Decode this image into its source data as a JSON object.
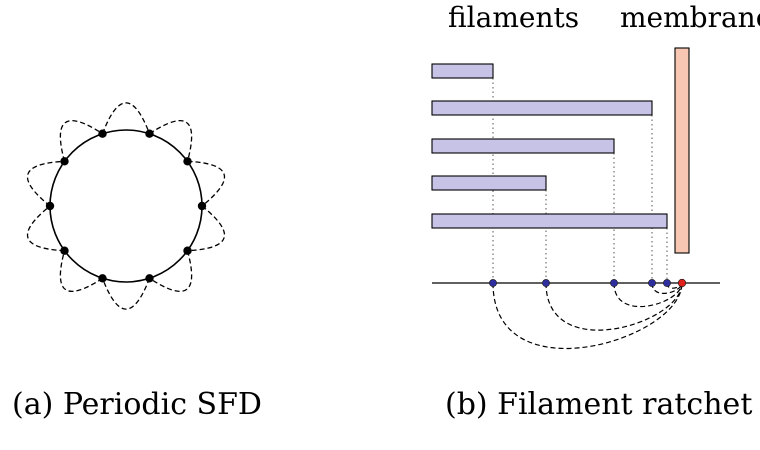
{
  "panel_a": {
    "caption": "(a) Periodic SFD",
    "site_count": 10,
    "colors": {
      "line": "#000000",
      "site": "#000000"
    }
  },
  "panel_b": {
    "caption": "(b) Filament ratchet",
    "label_filaments": "filaments",
    "label_membrane": "membrane",
    "filament_count": 5,
    "colors": {
      "filament_fill": "#c6c3e6",
      "membrane_fill": "#f7c7b3",
      "filament_tip_marker": "#2e2e9e",
      "membrane_marker": "#e0201b",
      "line": "#000000"
    }
  }
}
